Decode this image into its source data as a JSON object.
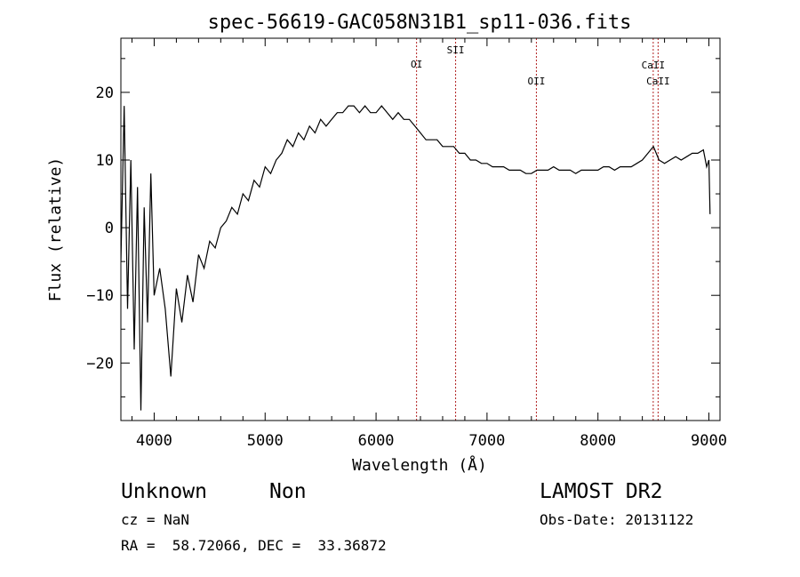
{
  "chart_data": {
    "type": "line",
    "title": "spec-56619-GAC058N31B1_sp11-036.fits",
    "xlabel": "Wavelength (Å)",
    "ylabel": "Flux (relative)",
    "xlim": [
      3700,
      9100
    ],
    "ylim": [
      -28.5,
      28
    ],
    "xticks": [
      4000,
      5000,
      6000,
      7000,
      8000,
      9000
    ],
    "yticks": [
      -20,
      -10,
      0,
      10,
      20
    ],
    "grid": false,
    "line_color": "#000000",
    "marker_color": "#b22222",
    "lines": [
      {
        "label": "OI",
        "wavelength": 6365
      },
      {
        "label": "SII",
        "wavelength": 6717
      },
      {
        "label": "OII",
        "wavelength": 7445
      },
      {
        "label": "CaII",
        "wavelength": 8498
      },
      {
        "label": "CaII",
        "wavelength": 8542
      }
    ],
    "series": [
      {
        "x": [
          3700,
          3730,
          3760,
          3790,
          3820,
          3850,
          3880,
          3910,
          3940,
          3970,
          4000,
          4050,
          4100,
          4150,
          4200,
          4250,
          4300,
          4350,
          4400,
          4450,
          4500,
          4550,
          4600,
          4650,
          4700,
          4750,
          4800,
          4850,
          4900,
          4950,
          5000,
          5050,
          5100,
          5150,
          5200,
          5250,
          5300,
          5350,
          5400,
          5450,
          5500,
          5550,
          5600,
          5650,
          5700,
          5750,
          5800,
          5850,
          5900,
          5950,
          6000,
          6050,
          6100,
          6150,
          6200,
          6250,
          6300,
          6350,
          6400,
          6450,
          6500,
          6550,
          6600,
          6650,
          6700,
          6750,
          6800,
          6850,
          6900,
          6950,
          7000,
          7050,
          7100,
          7150,
          7200,
          7250,
          7300,
          7350,
          7400,
          7450,
          7500,
          7550,
          7600,
          7650,
          7700,
          7750,
          7800,
          7850,
          7900,
          7950,
          8000,
          8050,
          8100,
          8150,
          8200,
          8250,
          8300,
          8350,
          8400,
          8450,
          8500,
          8550,
          8600,
          8650,
          8700,
          8750,
          8800,
          8850,
          8900,
          8950,
          8980,
          9000,
          9010
        ],
        "y": [
          -5,
          18,
          -12,
          10,
          -18,
          6,
          -27,
          3,
          -14,
          8,
          -10,
          -6,
          -12,
          -22,
          -9,
          -14,
          -7,
          -11,
          -4,
          -6,
          -2,
          -3,
          0,
          1,
          3,
          2,
          5,
          4,
          7,
          6,
          9,
          8,
          10,
          11,
          13,
          12,
          14,
          13,
          15,
          14,
          16,
          15,
          16,
          17,
          17,
          18,
          18,
          17,
          18,
          17,
          17,
          18,
          17,
          16,
          17,
          16,
          16,
          15,
          14,
          13,
          13,
          13,
          12,
          12,
          12,
          11,
          11,
          10,
          10,
          9.5,
          9.5,
          9,
          9,
          9,
          8.5,
          8.5,
          8.5,
          8,
          8,
          8.5,
          8.5,
          8.5,
          9,
          8.5,
          8.5,
          8.5,
          8,
          8.5,
          8.5,
          8.5,
          8.5,
          9,
          9,
          8.5,
          9,
          9,
          9,
          9.5,
          10,
          11,
          12,
          10,
          9.5,
          10,
          10.5,
          10,
          10.5,
          11,
          11,
          11.5,
          9,
          10,
          2
        ]
      }
    ]
  },
  "info": {
    "object_class": "Unknown",
    "subclass": "Non",
    "survey": "LAMOST DR2",
    "cz_text": "cz = NaN",
    "obs_date_text": "Obs-Date: 20131122",
    "coords_text": "RA =  58.72066, DEC =  33.36872"
  }
}
